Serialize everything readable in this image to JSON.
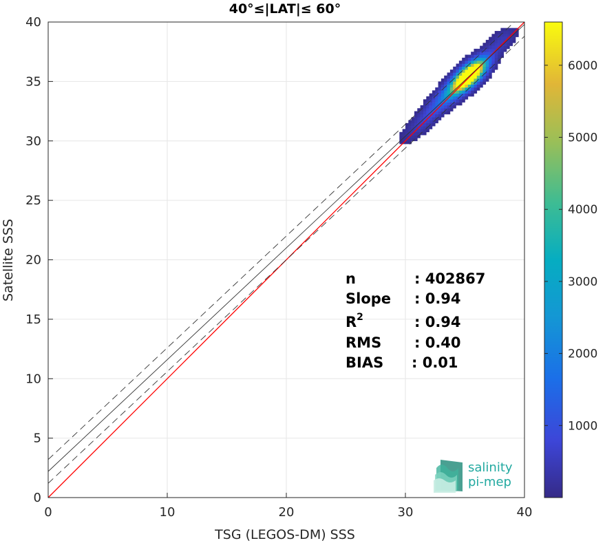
{
  "chart_data": {
    "type": "heatmap",
    "title": "40°≤|LAT|≤ 60°",
    "xlabel": "TSG (LEGOS-DM) SSS",
    "ylabel": "Satellite SSS",
    "xlim": [
      0,
      40
    ],
    "ylim": [
      0,
      40
    ],
    "xticks": [
      "0",
      "10",
      "20",
      "30",
      "40"
    ],
    "yticks": [
      "0",
      "5",
      "10",
      "15",
      "20",
      "25",
      "30",
      "35",
      "40"
    ],
    "grid": true,
    "colorbar": {
      "min": 0,
      "max": 6600,
      "ticks": [
        "1000",
        "2000",
        "3000",
        "4000",
        "5000",
        "6000"
      ],
      "colormap": "parula"
    },
    "density_clusters": [
      {
        "x": 35.5,
        "y": 35.6,
        "count": 6500
      },
      {
        "x": 35.0,
        "y": 35.2,
        "count": 3500
      },
      {
        "x": 34.5,
        "y": 34.8,
        "count": 2200
      },
      {
        "x": 36.0,
        "y": 36.0,
        "count": 1800
      },
      {
        "x": 33.5,
        "y": 33.8,
        "count": 1200
      },
      {
        "x": 32.5,
        "y": 32.8,
        "count": 700
      },
      {
        "x": 31.5,
        "y": 31.6,
        "count": 400
      },
      {
        "x": 38.0,
        "y": 38.3,
        "count": 500
      },
      {
        "x": 30.5,
        "y": 30.8,
        "count": 150
      }
    ],
    "lines": [
      {
        "name": "identity",
        "slope": 1.0,
        "intercept": 0.0,
        "color": "#ff0000",
        "style": "solid"
      },
      {
        "name": "fit",
        "slope": 0.94,
        "intercept": 2.2,
        "color": "#333333",
        "style": "solid"
      },
      {
        "name": "fit+",
        "slope": 0.94,
        "intercept": 3.2,
        "color": "#333333",
        "style": "dashed"
      },
      {
        "name": "fit-",
        "slope": 0.94,
        "intercept": 1.2,
        "color": "#333333",
        "style": "dashed"
      }
    ],
    "stats": {
      "n_label": "n",
      "n_value": ": 402867",
      "slope_label": "Slope",
      "slope_value": ": 0.94",
      "r2_label": "R",
      "r2_sup": "2",
      "r2_value": ": 0.94",
      "rms_label": "RMS",
      "rms_value": ": 0.40",
      "bias_label": "BIAS",
      "bias_value": ": 0.01"
    }
  },
  "logo": {
    "line1": "salinity",
    "line2": "pi-mep"
  }
}
